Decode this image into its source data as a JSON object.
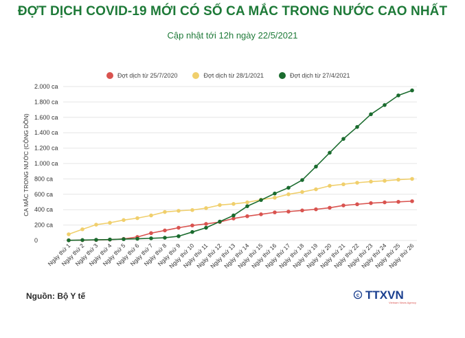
{
  "header": {
    "title": "ĐỢT DỊCH COVID-19 MỚI CÓ SỐ CA MẮC TRONG NƯỚC CAO NHẤT",
    "subtitle": "Cập nhật tới 12h ngày 22/5/2021"
  },
  "footer": {
    "source": "Nguồn: Bộ Y tế",
    "logo_text": "© TTXVN",
    "logo_tagline": "Vietnam News Agency"
  },
  "chart_data": {
    "type": "line",
    "title": "",
    "xlabel": "",
    "ylabel": "CA MẮC TRONG NƯỚC (CỘNG DỒN)",
    "ylim": [
      0,
      2000
    ],
    "yticks": [
      0,
      200,
      400,
      600,
      800,
      1000,
      1200,
      1400,
      1600,
      1800,
      2000
    ],
    "ytick_labels": [
      "0",
      "200 ca",
      "400 ca",
      "600 ca",
      "800 ca",
      "1.000 ca",
      "1.200 ca",
      "1.400 ca",
      "1.600 ca",
      "1.800 ca",
      "2.000 ca"
    ],
    "grid": true,
    "legend_position": "top",
    "categories": [
      "Ngày thứ 1",
      "Ngày thứ 2",
      "Ngày thứ 3",
      "Ngày thứ 4",
      "Ngày thứ 5",
      "Ngày thứ 6",
      "Ngày thứ 7",
      "Ngày thứ 8",
      "Ngày thứ 9",
      "Ngày thứ 10",
      "Ngày thứ 11",
      "Ngày thứ 12",
      "Ngày thứ 13",
      "Ngày thứ 14",
      "Ngày thứ 15",
      "Ngày thứ 16",
      "Ngày thứ 17",
      "Ngày thứ 18",
      "Ngày thứ 19",
      "Ngày thứ 20",
      "Ngày thứ 21",
      "Ngày thứ 22",
      "Ngày thứ 23",
      "Ngày thứ 24",
      "Ngày thứ 25",
      "Ngày thứ 26"
    ],
    "series": [
      {
        "name": "Đợt dịch từ 25/7/2020",
        "color": "#d9534f",
        "values": [
          2,
          4,
          7,
          11,
          20,
          45,
          95,
          130,
          165,
          195,
          215,
          240,
          285,
          315,
          340,
          365,
          375,
          390,
          405,
          425,
          455,
          470,
          485,
          495,
          502,
          510
        ]
      },
      {
        "name": "Đợt dịch từ 28/1/2021",
        "color": "#f0cf6c",
        "values": [
          80,
          145,
          205,
          230,
          265,
          290,
          325,
          370,
          385,
          395,
          420,
          460,
          475,
          495,
          530,
          555,
          600,
          630,
          665,
          710,
          730,
          750,
          765,
          775,
          790,
          800
        ]
      },
      {
        "name": "Đợt dịch từ 27/4/2021",
        "color": "#1a6b2e",
        "values": [
          2,
          5,
          8,
          12,
          17,
          22,
          28,
          35,
          55,
          110,
          165,
          245,
          325,
          445,
          525,
          610,
          685,
          785,
          960,
          1140,
          1320,
          1475,
          1640,
          1760,
          1885,
          1950
        ]
      }
    ]
  }
}
